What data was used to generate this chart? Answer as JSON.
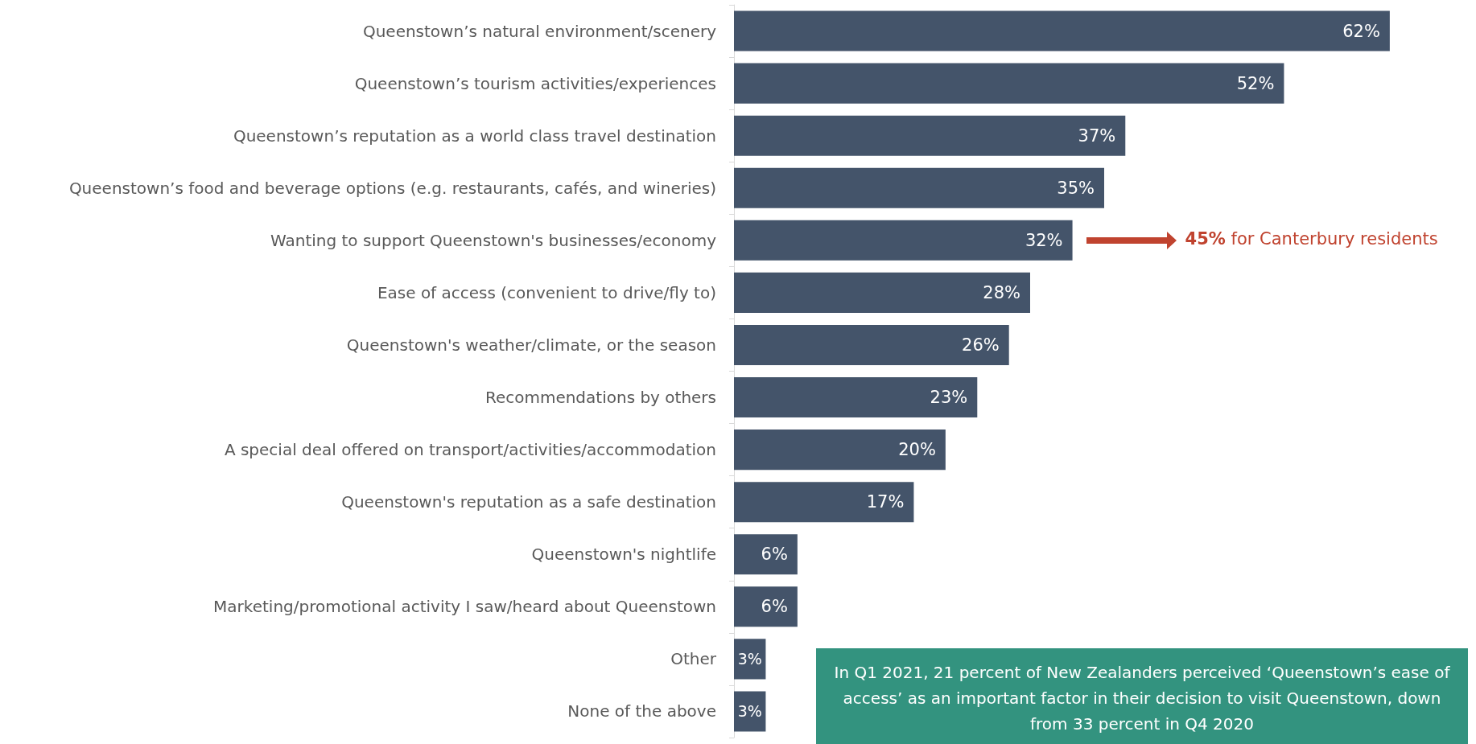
{
  "chart_data": {
    "type": "bar",
    "orientation": "horizontal",
    "categories": [
      "Queenstown’s natural environment/scenery",
      "Queenstown’s tourism activities/experiences",
      "Queenstown’s reputation as a world class travel destination",
      "Queenstown’s food and beverage options (e.g. restaurants, cafés, and wineries)",
      "Wanting to support Queenstown's businesses/economy",
      "Ease of access (convenient to drive/fly to)",
      "Queenstown's weather/climate, or the season",
      "Recommendations by others",
      "A special deal offered on transport/activities/accommodation",
      "Queenstown's reputation as a safe destination",
      "Queenstown's nightlife",
      "Marketing/promotional activity I saw/heard about Queenstown",
      "Other",
      "None of the above"
    ],
    "values": [
      62,
      52,
      37,
      35,
      32,
      28,
      26,
      23,
      20,
      17,
      6,
      6,
      3,
      3
    ],
    "value_labels": [
      "62%",
      "52%",
      "37%",
      "35%",
      "32%",
      "28%",
      "26%",
      "23%",
      "20%",
      "17%",
      "6%",
      "6%",
      "3%",
      "3%"
    ],
    "color": "#44546a",
    "tick_labels": "y",
    "grid": false,
    "annotations": [
      "45% for Canterbury residents",
      "In Q1 2021, 21 percent of New Zealanders perceived ‘Queenstown’s ease of access’ as an important factor in their decision to visit Queenstown, down from 33 percent in Q4 2020"
    ]
  }
}
